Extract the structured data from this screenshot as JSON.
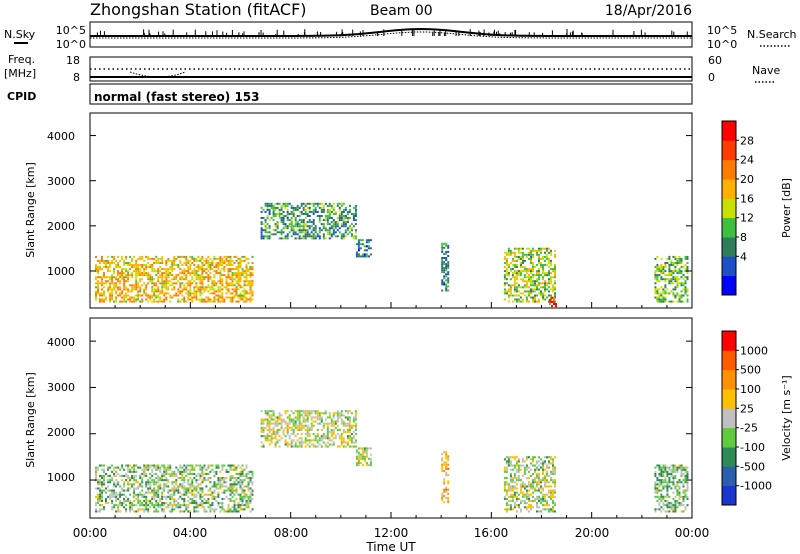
{
  "header": {
    "station": "Zhongshan Station (fitACF)",
    "beam": "Beam 00",
    "date": "18/Apr/2016"
  },
  "nsky_panel": {
    "left_label": "N.Sky",
    "left_ticks": [
      "10^5",
      "10^0"
    ],
    "right_ticks": [
      "10^5",
      "10^0"
    ],
    "right_label": "N.Search"
  },
  "freq_panel": {
    "left_label_1": "Freq.",
    "left_label_2": "[MHz]",
    "left_ticks": [
      "18",
      "8"
    ],
    "right_ticks": [
      "60",
      "0"
    ],
    "right_label": "Nave"
  },
  "cpid_panel": {
    "label": "CPID",
    "mode": "normal (fast stereo) 153"
  },
  "time_axis": {
    "ticks": [
      "00:00",
      "04:00",
      "08:00",
      "12:00",
      "16:00",
      "20:00",
      "00:00"
    ],
    "label": "Time UT"
  },
  "power_panel": {
    "ylabel": "Slant Range [km]",
    "yticks": [
      "4000",
      "3000",
      "2000",
      "1000"
    ],
    "colorbar_label": "Power [dB]",
    "colorbar_ticks": [
      "28",
      "24",
      "20",
      "16",
      "12",
      "8",
      "4"
    ],
    "colorbar_colors": [
      "#0000ff",
      "#1f4fc8",
      "#2e7d5b",
      "#3fbf3f",
      "#c8e000",
      "#ffb000",
      "#ff7a00",
      "#ff3c00",
      "#ff0000"
    ]
  },
  "velocity_panel": {
    "ylabel": "Slant Range [km]",
    "yticks": [
      "4000",
      "3000",
      "2000",
      "1000"
    ],
    "colorbar_label": "Velocity [m s⁻¹]",
    "colorbar_ticks": [
      "1000",
      "500",
      "100",
      "25",
      "-25",
      "-100",
      "-500",
      "-1000"
    ],
    "colorbar_colors": [
      "#1a36d0",
      "#2a5fb0",
      "#2e8b57",
      "#5fcc3f",
      "#c0c0c0",
      "#ffc000",
      "#ff9000",
      "#ff5a00",
      "#ff0000"
    ]
  },
  "chart_data": [
    {
      "type": "heatmap",
      "title": "Power",
      "xlabel": "Time UT",
      "ylabel": "Slant Range [km]",
      "xlim_hours": [
        0,
        24
      ],
      "ylim_km": [
        180,
        4500
      ],
      "zlabel": "Power [dB]",
      "zlim": [
        0,
        30
      ],
      "regions": [
        {
          "t": [
            0.2,
            6.5
          ],
          "r": [
            300,
            1300
          ],
          "value": 18
        },
        {
          "t": [
            6.8,
            10.6
          ],
          "r": [
            1700,
            2500
          ],
          "value": 10
        },
        {
          "t": [
            10.6,
            11.2
          ],
          "r": [
            1300,
            1700
          ],
          "value": 8
        },
        {
          "t": [
            14.0,
            14.3
          ],
          "r": [
            500,
            1600
          ],
          "value": 8
        },
        {
          "t": [
            16.5,
            18.5
          ],
          "r": [
            300,
            1500
          ],
          "value": 14
        },
        {
          "t": [
            18.3,
            18.6
          ],
          "r": [
            200,
            400
          ],
          "value": 26
        },
        {
          "t": [
            22.5,
            23.8
          ],
          "r": [
            300,
            1300
          ],
          "value": 12
        }
      ]
    },
    {
      "type": "heatmap",
      "title": "Velocity",
      "xlabel": "Time UT",
      "ylabel": "Slant Range [km]",
      "xlim_hours": [
        0,
        24
      ],
      "ylim_km": [
        180,
        4500
      ],
      "zlabel": "Velocity [m s⁻¹]",
      "zlim": [
        -1000,
        1000
      ],
      "regions": [
        {
          "t": [
            0.2,
            6.5
          ],
          "r": [
            300,
            1300
          ],
          "value": -150
        },
        {
          "t": [
            6.8,
            10.6
          ],
          "r": [
            1700,
            2500
          ],
          "value": 0
        },
        {
          "t": [
            10.6,
            11.2
          ],
          "r": [
            1300,
            1700
          ],
          "value": 0
        },
        {
          "t": [
            14.0,
            14.3
          ],
          "r": [
            500,
            1600
          ],
          "value": 300
        },
        {
          "t": [
            16.5,
            18.5
          ],
          "r": [
            300,
            1500
          ],
          "value": -50
        },
        {
          "t": [
            22.5,
            23.8
          ],
          "r": [
            300,
            1300
          ],
          "value": -200
        }
      ]
    }
  ]
}
